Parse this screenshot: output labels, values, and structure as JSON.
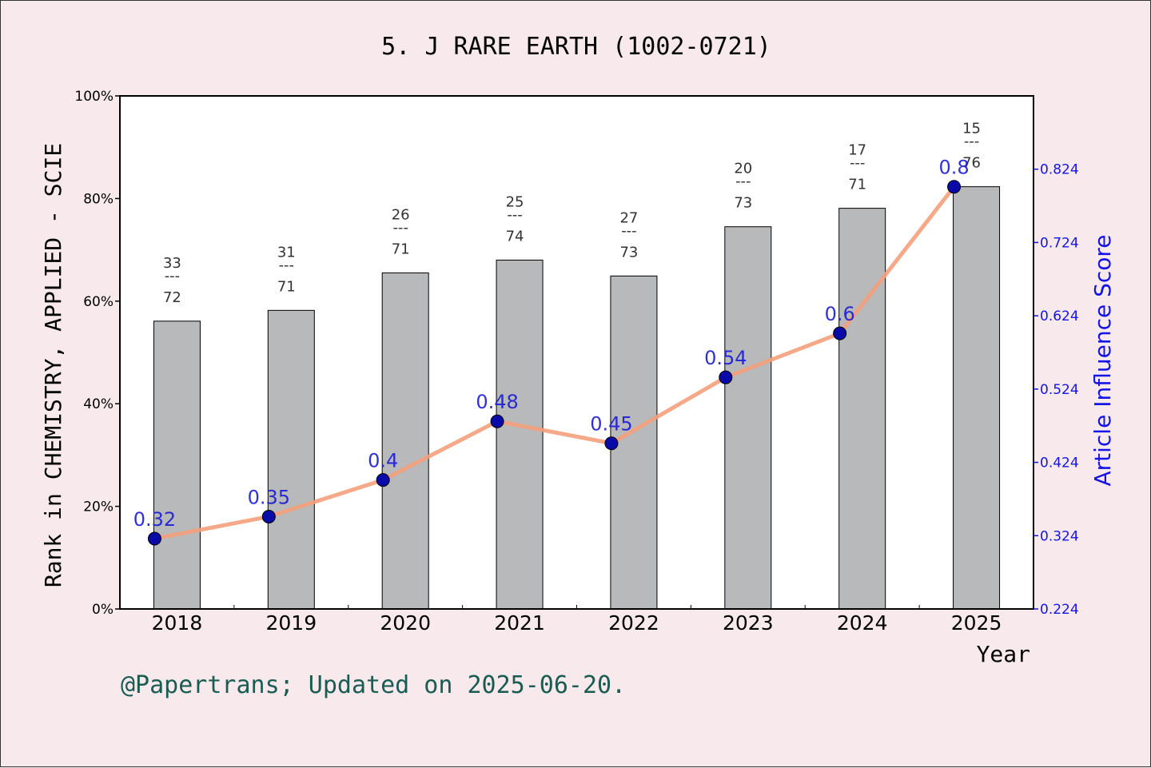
{
  "chart_data": {
    "type": "bar",
    "title": "5. J RARE EARTH (1002-0721)",
    "xlabel": "Year",
    "ylabel": "Rank in CHEMISTRY, APPLIED - SCIE",
    "y2label": "Article Influence Score",
    "categories": [
      "2018",
      "2019",
      "2020",
      "2021",
      "2022",
      "2023",
      "2024",
      "2025"
    ],
    "ylim": [
      0,
      100
    ],
    "y_ticks": [
      "0%",
      "20%",
      "40%",
      "60%",
      "80%",
      "100%"
    ],
    "y2lim": [
      0.224,
      0.924
    ],
    "y2_ticks": [
      "0.224",
      "0.324",
      "0.424",
      "0.524",
      "0.624",
      "0.724",
      "0.824"
    ],
    "series": [
      {
        "kind": "bar",
        "values": [
          56.1,
          58.2,
          65.5,
          68.0,
          64.9,
          74.5,
          78.1,
          82.3
        ],
        "rank": [
          "33",
          "31",
          "26",
          "25",
          "27",
          "20",
          "17",
          "15"
        ],
        "total": [
          "72",
          "71",
          "71",
          "74",
          "73",
          "73",
          "71",
          "76"
        ],
        "color": "#b8b9ba"
      },
      {
        "kind": "line",
        "axis": "right",
        "values": [
          0.32,
          0.35,
          0.4,
          0.48,
          0.45,
          0.54,
          0.6,
          0.8
        ],
        "labels": [
          "0.32",
          "0.35",
          "0.4",
          "0.48",
          "0.45",
          "0.54",
          "0.6",
          "0.8"
        ],
        "line_color": "#f4a07c",
        "marker_color": "#0a0aa8"
      }
    ],
    "grid": false,
    "fraction_separator": "---",
    "footer": "@Papertrans; Updated on 2025-06-20."
  }
}
